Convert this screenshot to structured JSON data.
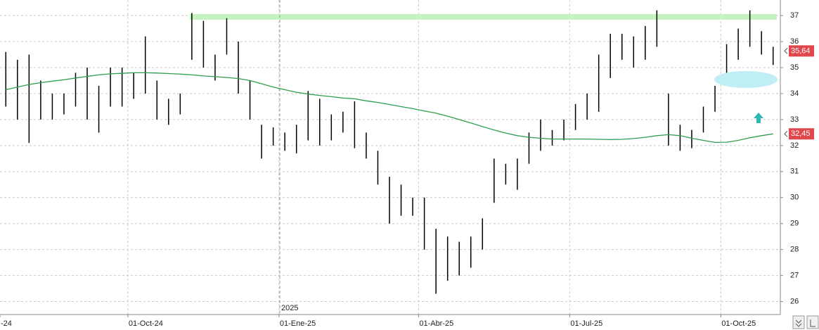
{
  "chart_data": {
    "type": "ohlc",
    "color": "#000000",
    "categories": [
      "-24",
      null,
      null,
      null,
      null,
      null,
      null,
      null,
      null,
      null,
      null,
      "01-Oct-24",
      null,
      null,
      null,
      null,
      null,
      null,
      null,
      null,
      null,
      null,
      null,
      null,
      "01-Ene-25",
      null,
      null,
      null,
      null,
      null,
      null,
      null,
      null,
      null,
      null,
      null,
      "01-Abr-25",
      null,
      null,
      null,
      null,
      null,
      null,
      null,
      null,
      null,
      null,
      null,
      null,
      "01-Jul-25",
      null,
      null,
      null,
      null,
      null,
      null,
      null,
      null,
      null,
      null,
      null,
      null,
      "01-Oct-25",
      null,
      null,
      null,
      null
    ],
    "year_label": "2025",
    "high": [
      35.6,
      35.3,
      35.5,
      34.5,
      34,
      34,
      34.8,
      35,
      34.3,
      35,
      35,
      34.8,
      36.2,
      34.5,
      33.8,
      34,
      37.1,
      36.8,
      35.5,
      36.9,
      36,
      34.5,
      32.8,
      32.7,
      32.5,
      32.8,
      34.1,
      33.8,
      33.2,
      33.3,
      33.7,
      32.5,
      31.8,
      30.8,
      30.5,
      30,
      30,
      28.8,
      28.5,
      28.3,
      28.5,
      29.2,
      31.5,
      31.3,
      31.5,
      32.5,
      33,
      32.6,
      33,
      33.6,
      34,
      35.5,
      36.3,
      36.3,
      36.2,
      36.6,
      37.2,
      34,
      32.8,
      32.6,
      33.5,
      34.3,
      35.9,
      36.5,
      37.2,
      36.4,
      35.8
    ],
    "low": [
      33.5,
      33,
      32.1,
      33,
      33,
      33.2,
      33.5,
      33,
      32.5,
      33.5,
      33.5,
      33.8,
      34,
      33,
      32.8,
      33.2,
      35.3,
      35,
      34.5,
      35.5,
      34,
      33,
      31.5,
      32,
      31.8,
      31.7,
      32.2,
      32,
      32.2,
      32.5,
      31.9,
      31.5,
      30.5,
      29,
      29.3,
      29.3,
      28,
      26.3,
      26.8,
      27,
      27.3,
      28,
      29.8,
      30.5,
      30.3,
      31.3,
      31.8,
      32,
      32.2,
      32.6,
      33,
      33.3,
      34.6,
      35.3,
      35,
      35.3,
      35.8,
      32,
      31.8,
      31.9,
      32.5,
      33.3,
      34.8,
      35.3,
      35.8,
      35.5,
      35.1
    ],
    "ma": {
      "color": "#2e9e4f",
      "values": [
        34.15,
        34.25,
        34.35,
        34.42,
        34.48,
        34.53,
        34.6,
        34.66,
        34.72,
        34.76,
        34.78,
        34.8,
        34.8,
        34.79,
        34.77,
        34.75,
        34.72,
        34.68,
        34.65,
        34.62,
        34.58,
        34.5,
        34.38,
        34.25,
        34.15,
        34.05,
        33.98,
        33.93,
        33.88,
        33.83,
        33.8,
        33.72,
        33.66,
        33.58,
        33.5,
        33.42,
        33.33,
        33.25,
        33.13,
        33.0,
        32.87,
        32.73,
        32.6,
        32.48,
        32.38,
        32.32,
        32.28,
        32.25,
        32.25,
        32.25,
        32.25,
        32.24,
        32.23,
        32.24,
        32.27,
        32.32,
        32.38,
        32.42,
        32.38,
        32.28,
        32.2,
        32.12,
        32.13,
        32.2,
        32.3,
        32.38,
        32.45
      ]
    },
    "price_labels": [
      {
        "value": 35.64,
        "label": "35,64"
      },
      {
        "value": 32.45,
        "label": "32,45"
      }
    ],
    "price_label_color": "#e0474c",
    "ylim": [
      25.5,
      37.6
    ],
    "yticks": [
      26,
      27,
      28,
      29,
      30,
      31,
      32,
      33,
      34,
      35,
      36,
      37
    ],
    "grid": true
  }
}
